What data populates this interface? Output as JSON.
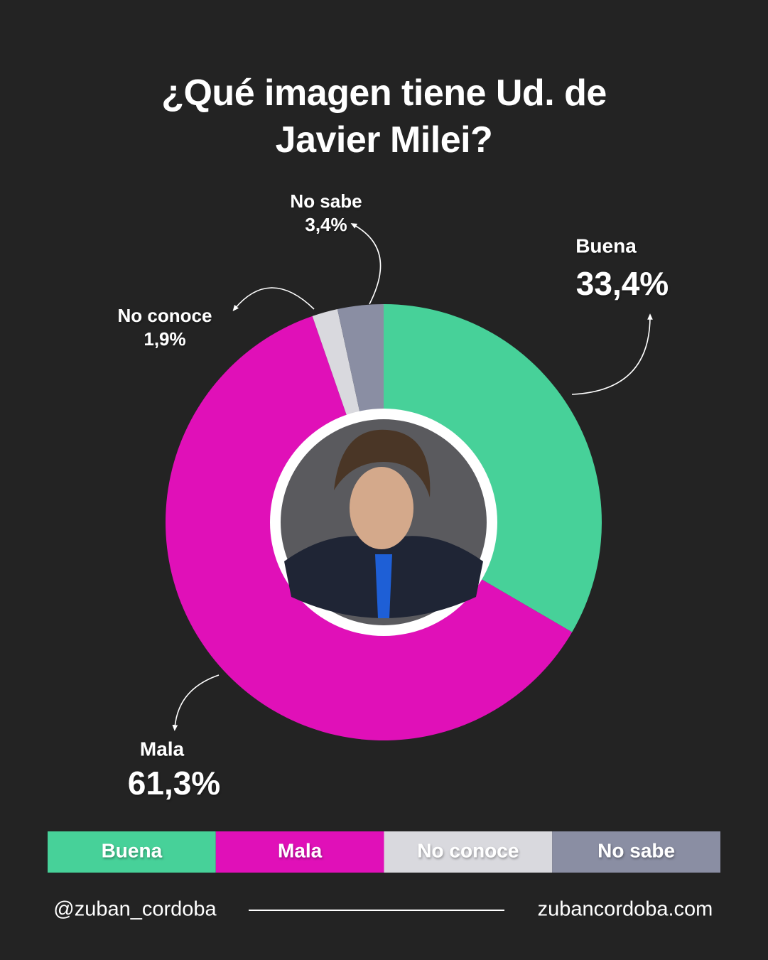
{
  "chart_data": {
    "type": "pie",
    "donut": true,
    "title": "¿Qué imagen tiene Ud. de Javier Milei?",
    "categories": [
      "Buena",
      "Mala",
      "No conoce",
      "No sabe"
    ],
    "values": [
      33.4,
      61.3,
      1.9,
      3.4
    ],
    "value_labels": [
      "33,4%",
      "61,3%",
      "1,9%",
      "3,4%"
    ],
    "colors": [
      "#47d199",
      "#e010b8",
      "#d9d9de",
      "#8a8ea3"
    ],
    "legend": "bottom"
  },
  "footer": {
    "handle": "@zuban_cordoba",
    "website": "zubancordoba.com"
  }
}
